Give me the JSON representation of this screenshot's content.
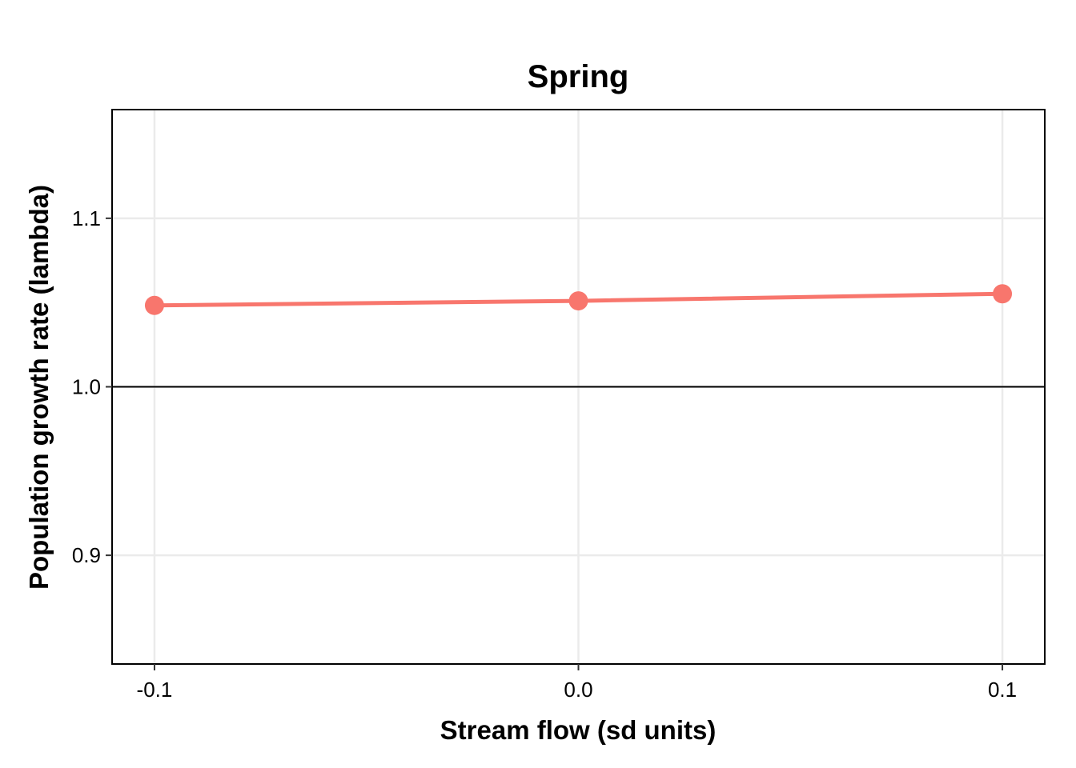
{
  "chart_data": {
    "type": "line",
    "title": "Spring",
    "xlabel": "Stream flow (sd units)",
    "ylabel": "Population growth rate (lambda)",
    "x": [
      -0.1,
      0.0,
      0.1
    ],
    "x_tick_labels": [
      "-0.1",
      "0.0",
      "0.1"
    ],
    "y_ticks": [
      0.9,
      1.0,
      1.1
    ],
    "y_tick_labels": [
      "0.9",
      "1.0",
      "1.1"
    ],
    "xlim": [
      -0.11,
      0.11
    ],
    "ylim": [
      0.8355,
      1.1645
    ],
    "reference_line_y": 1.0,
    "grid": true,
    "series": [
      {
        "values": [
          1.0483,
          1.051,
          1.0552
        ],
        "color": "#F8766D"
      }
    ]
  }
}
